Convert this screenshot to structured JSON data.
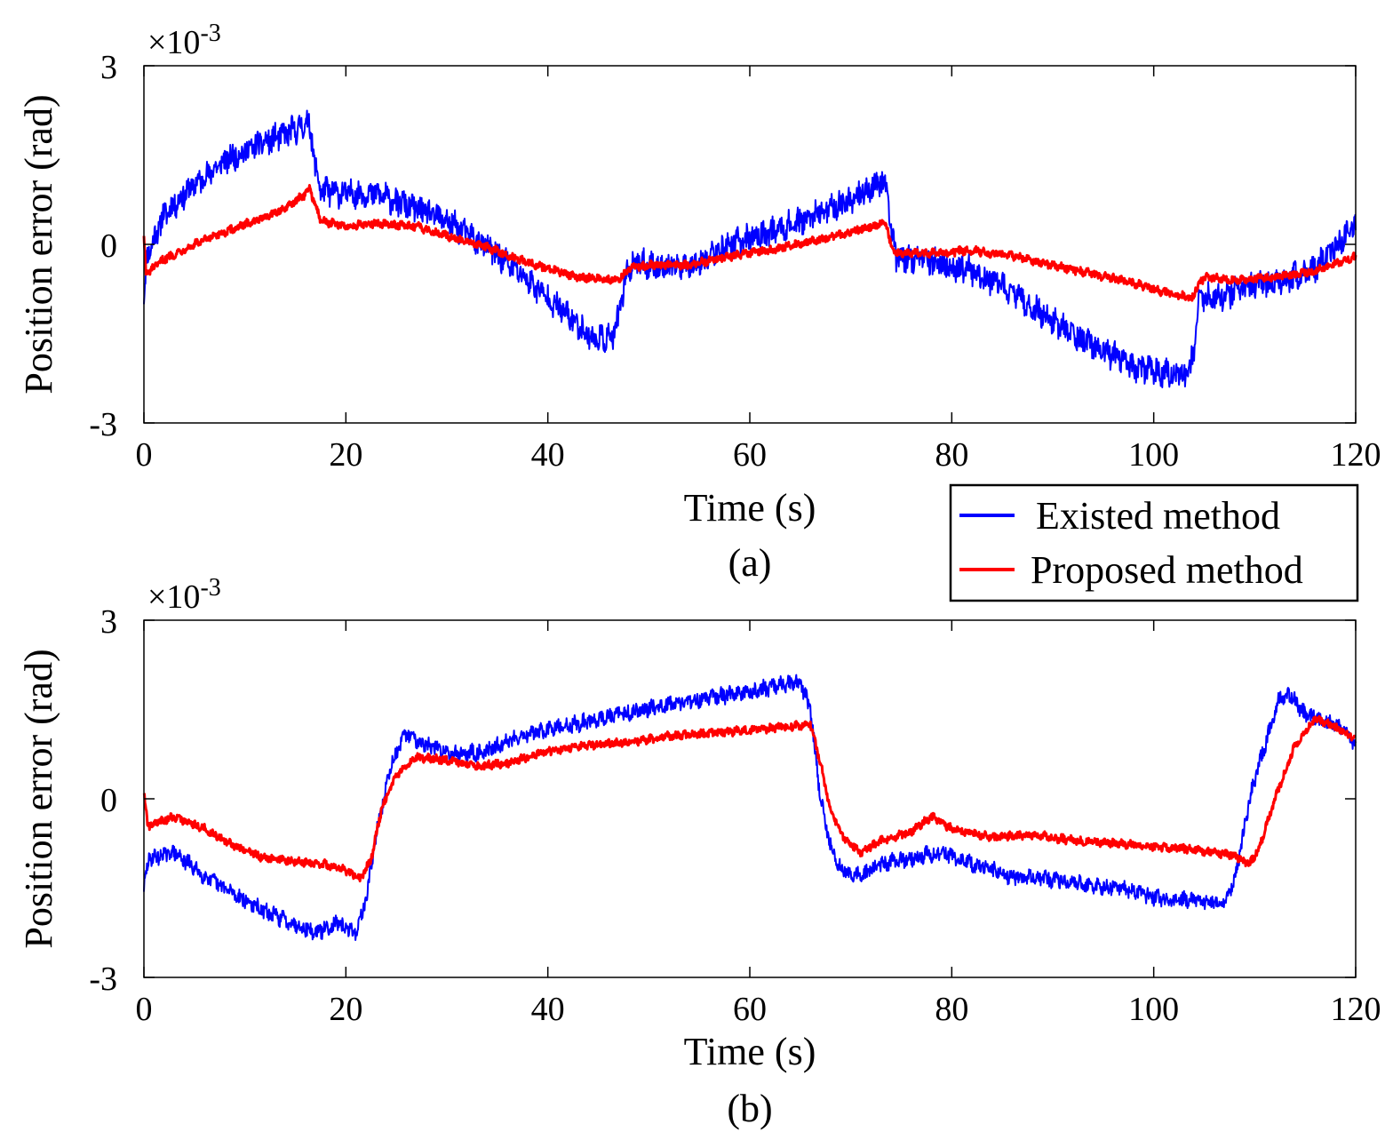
{
  "chart_data": [
    {
      "type": "line",
      "panel_label": "(a)",
      "xlabel": "Time (s)",
      "ylabel": "Position error (rad)",
      "y_exponent_prefix": "×10",
      "y_exponent": "-3",
      "xlim": [
        0,
        120
      ],
      "ylim": [
        -3,
        3
      ],
      "xticks": [
        0,
        20,
        40,
        60,
        80,
        100,
        120
      ],
      "xtick_labels": [
        "0",
        "20",
        "40",
        "60",
        "80",
        "100",
        "120"
      ],
      "yticks": [
        -3,
        0,
        3
      ],
      "ytick_labels": [
        "-3",
        "0",
        "3"
      ],
      "series": [
        {
          "name": "Existed method",
          "color": "#0000ff",
          "noise": 0.2,
          "points": [
            [
              0,
              -0.9
            ],
            [
              0.3,
              -0.2
            ],
            [
              2,
              0.5
            ],
            [
              5,
              1.0
            ],
            [
              8,
              1.4
            ],
            [
              11,
              1.65
            ],
            [
              14,
              1.85
            ],
            [
              16,
              2.0
            ],
            [
              16.3,
              2.1
            ],
            [
              17,
              1.3
            ],
            [
              17.5,
              0.9
            ],
            [
              20,
              0.85
            ],
            [
              23,
              0.85
            ],
            [
              26,
              0.65
            ],
            [
              30,
              0.4
            ],
            [
              34,
              -0.05
            ],
            [
              37,
              -0.45
            ],
            [
              40,
              -0.9
            ],
            [
              43,
              -1.35
            ],
            [
              44.5,
              -1.6
            ],
            [
              46.5,
              -1.55
            ],
            [
              47.3,
              -1.0
            ],
            [
              47.7,
              -0.5
            ],
            [
              48.5,
              -0.3
            ],
            [
              52,
              -0.4
            ],
            [
              55,
              -0.3
            ],
            [
              58,
              0.0
            ],
            [
              62,
              0.2
            ],
            [
              66,
              0.45
            ],
            [
              70,
              0.75
            ],
            [
              73,
              1.05
            ],
            [
              73.5,
              1.05
            ],
            [
              74,
              0.2
            ],
            [
              74.5,
              -0.2
            ],
            [
              78,
              -0.3
            ],
            [
              82,
              -0.45
            ],
            [
              86,
              -0.8
            ],
            [
              90,
              -1.3
            ],
            [
              94,
              -1.7
            ],
            [
              98,
              -2.05
            ],
            [
              101,
              -2.15
            ],
            [
              103.2,
              -2.25
            ],
            [
              104,
              -1.8
            ],
            [
              104.5,
              -0.9
            ],
            [
              107,
              -0.85
            ],
            [
              110,
              -0.7
            ],
            [
              113,
              -0.6
            ],
            [
              116,
              -0.4
            ],
            [
              118,
              -0.05
            ],
            [
              120,
              0.3
            ]
          ]
        },
        {
          "name": "Proposed method",
          "color": "#ff0000",
          "noise": 0.06,
          "points": [
            [
              0,
              0.15
            ],
            [
              0.2,
              -0.5
            ],
            [
              2,
              -0.25
            ],
            [
              5,
              0.0
            ],
            [
              8,
              0.2
            ],
            [
              11,
              0.4
            ],
            [
              14,
              0.6
            ],
            [
              16,
              0.85
            ],
            [
              16.4,
              0.95
            ],
            [
              17.5,
              0.4
            ],
            [
              20,
              0.3
            ],
            [
              23,
              0.35
            ],
            [
              27,
              0.3
            ],
            [
              30,
              0.15
            ],
            [
              34,
              -0.05
            ],
            [
              37,
              -0.25
            ],
            [
              40,
              -0.4
            ],
            [
              43,
              -0.55
            ],
            [
              47,
              -0.6
            ],
            [
              48,
              -0.4
            ],
            [
              50,
              -0.35
            ],
            [
              54,
              -0.35
            ],
            [
              58,
              -0.2
            ],
            [
              62,
              -0.1
            ],
            [
              66,
              0.05
            ],
            [
              70,
              0.2
            ],
            [
              73,
              0.35
            ],
            [
              73.5,
              0.35
            ],
            [
              74,
              -0.05
            ],
            [
              74.5,
              -0.15
            ],
            [
              78,
              -0.15
            ],
            [
              82,
              -0.1
            ],
            [
              86,
              -0.2
            ],
            [
              90,
              -0.35
            ],
            [
              94,
              -0.5
            ],
            [
              98,
              -0.65
            ],
            [
              101,
              -0.8
            ],
            [
              103.8,
              -0.9
            ],
            [
              104.2,
              -0.75
            ],
            [
              105,
              -0.55
            ],
            [
              108,
              -0.6
            ],
            [
              112,
              -0.55
            ],
            [
              116,
              -0.45
            ],
            [
              120,
              -0.2
            ]
          ]
        }
      ]
    },
    {
      "type": "line",
      "panel_label": "(b)",
      "xlabel": "Time (s)",
      "ylabel": "Position error (rad)",
      "y_exponent_prefix": "×10",
      "y_exponent": "-3",
      "xlim": [
        0,
        120
      ],
      "ylim": [
        -3,
        3
      ],
      "xticks": [
        0,
        20,
        40,
        60,
        80,
        100,
        120
      ],
      "xtick_labels": [
        "0",
        "20",
        "40",
        "60",
        "80",
        "100",
        "120"
      ],
      "yticks": [
        -3,
        0,
        3
      ],
      "ytick_labels": [
        "-3",
        "0",
        "3"
      ],
      "series": [
        {
          "name": "Existed method",
          "color": "#0000ff",
          "noise": 0.12,
          "points": [
            [
              0,
              -1.5
            ],
            [
              0.5,
              -1.0
            ],
            [
              3,
              -0.9
            ],
            [
              6,
              -1.3
            ],
            [
              9,
              -1.6
            ],
            [
              12,
              -1.9
            ],
            [
              15,
              -2.1
            ],
            [
              17,
              -2.25
            ],
            [
              19,
              -2.1
            ],
            [
              21,
              -2.25
            ],
            [
              22,
              -1.7
            ],
            [
              23,
              -0.6
            ],
            [
              24.5,
              0.6
            ],
            [
              26,
              1.1
            ],
            [
              28,
              0.9
            ],
            [
              31,
              0.75
            ],
            [
              34,
              0.8
            ],
            [
              37,
              1.05
            ],
            [
              40,
              1.15
            ],
            [
              44,
              1.3
            ],
            [
              48,
              1.45
            ],
            [
              52,
              1.6
            ],
            [
              56,
              1.7
            ],
            [
              60,
              1.8
            ],
            [
              63,
              1.9
            ],
            [
              65,
              1.95
            ],
            [
              66,
              1.5
            ],
            [
              67,
              0.0
            ],
            [
              68,
              -0.8
            ],
            [
              69,
              -1.2
            ],
            [
              71,
              -1.3
            ],
            [
              73,
              -1.1
            ],
            [
              76,
              -1.0
            ],
            [
              79,
              -0.9
            ],
            [
              82,
              -1.1
            ],
            [
              86,
              -1.3
            ],
            [
              90,
              -1.35
            ],
            [
              94,
              -1.45
            ],
            [
              98,
              -1.55
            ],
            [
              101,
              -1.7
            ],
            [
              104,
              -1.7
            ],
            [
              107,
              -1.75
            ],
            [
              108,
              -1.4
            ],
            [
              109.5,
              0.0
            ],
            [
              111,
              0.9
            ],
            [
              112.5,
              1.7
            ],
            [
              113.5,
              1.75
            ],
            [
              115,
              1.4
            ],
            [
              117,
              1.3
            ],
            [
              118.5,
              1.2
            ],
            [
              120,
              0.9
            ]
          ]
        },
        {
          "name": "Proposed method",
          "color": "#ff0000",
          "noise": 0.06,
          "points": [
            [
              0,
              0.1
            ],
            [
              0.4,
              -0.45
            ],
            [
              3,
              -0.3
            ],
            [
              6,
              -0.5
            ],
            [
              9,
              -0.8
            ],
            [
              12,
              -1.0
            ],
            [
              15,
              -1.05
            ],
            [
              18,
              -1.1
            ],
            [
              20,
              -1.2
            ],
            [
              21.5,
              -1.35
            ],
            [
              22.5,
              -1.0
            ],
            [
              23.5,
              -0.2
            ],
            [
              25,
              0.4
            ],
            [
              27,
              0.7
            ],
            [
              30,
              0.65
            ],
            [
              33,
              0.55
            ],
            [
              36,
              0.6
            ],
            [
              40,
              0.8
            ],
            [
              44,
              0.9
            ],
            [
              48,
              0.95
            ],
            [
              52,
              1.05
            ],
            [
              56,
              1.1
            ],
            [
              60,
              1.15
            ],
            [
              63,
              1.2
            ],
            [
              66,
              1.25
            ],
            [
              67,
              0.6
            ],
            [
              68,
              -0.2
            ],
            [
              69.5,
              -0.7
            ],
            [
              71,
              -0.9
            ],
            [
              73,
              -0.7
            ],
            [
              76,
              -0.55
            ],
            [
              78,
              -0.3
            ],
            [
              80,
              -0.5
            ],
            [
              84,
              -0.65
            ],
            [
              88,
              -0.6
            ],
            [
              92,
              -0.7
            ],
            [
              96,
              -0.75
            ],
            [
              100,
              -0.8
            ],
            [
              104,
              -0.85
            ],
            [
              108,
              -0.95
            ],
            [
              109.5,
              -1.1
            ],
            [
              110.5,
              -0.8
            ],
            [
              112,
              0.0
            ],
            [
              114,
              0.9
            ],
            [
              116,
              1.35
            ],
            [
              118,
              1.2
            ],
            [
              120,
              1.0
            ]
          ]
        }
      ]
    }
  ],
  "legend": {
    "position": "right, between panels",
    "entries": [
      {
        "label": "Existed method",
        "color": "#0000ff"
      },
      {
        "label": "Proposed method",
        "color": "#ff0000"
      }
    ]
  }
}
